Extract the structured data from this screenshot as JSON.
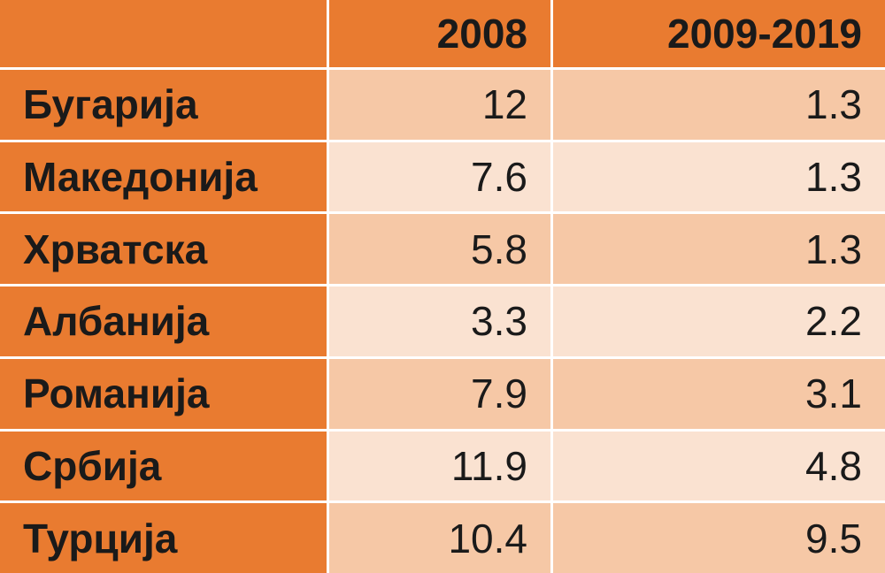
{
  "table": {
    "header": [
      "2008",
      "2009-2019"
    ],
    "rows": [
      [
        "Бугарија",
        "12",
        "1.3"
      ],
      [
        "Македонија",
        "7.6",
        "1.3"
      ],
      [
        "Хрватска",
        "5.8",
        "1.3"
      ],
      [
        "Албанија",
        "3.3",
        "2.2"
      ],
      [
        "Романија",
        "7.9",
        "3.1"
      ],
      [
        "Србија",
        "11.9",
        "4.8"
      ],
      [
        "Турција",
        "10.4",
        "9.5"
      ]
    ]
  }
}
